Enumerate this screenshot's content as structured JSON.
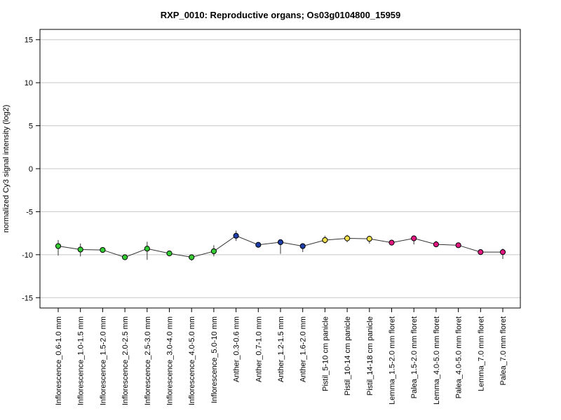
{
  "chart_data": {
    "type": "scatter",
    "title": "RXP_0010: Reproductive organs; Os03g0104800_15959",
    "ylabel": "normalized Cy3 signal intensity (log2)",
    "xlabel": "",
    "ylim": [
      -16.2,
      16.2
    ],
    "yticks": [
      -15,
      -10,
      -5,
      0,
      5,
      10,
      15
    ],
    "grid": "horizontal",
    "connected": true,
    "categories": [
      "Inflorescence_0.6-1.0 mm",
      "Inflorescence_1.0-1.5 mm",
      "Inflorescence_1.5-2.0 mm",
      "Inflorescence_2.0-2.5 mm",
      "Inflorescence_2.5-3.0 mm",
      "Inflorescence_3.0-4.0 mm",
      "Inflorescence_4.0-5.0 mm",
      "Inflorescence_5.0-10 mm",
      "Anther_0.3-0.6 mm",
      "Anther_0.7-1.0 mm",
      "Anther_1.2-1.5 mm",
      "Anther_1.6-2.0 mm",
      "Pistil_5-10 cm panicle",
      "Pistil_10-14 cm panicle",
      "Pistil_14-18 cm panicle",
      "Lemma_1.5-2.0 mm floret",
      "Palea_1.5-2.0 mm floret",
      "Lemma_4.0-5.0 mm floret",
      "Palea_4.0-5.0 mm floret",
      "Lemma_7.0 mm floret",
      "Palea_7.0 mm floret"
    ],
    "values": [
      -9.0,
      -9.4,
      -9.45,
      -10.3,
      -9.3,
      -9.85,
      -10.3,
      -9.6,
      -7.8,
      -8.85,
      -8.55,
      -9.0,
      -8.3,
      -8.1,
      -8.15,
      -8.6,
      -8.1,
      -8.8,
      -8.9,
      -9.7,
      -9.7
    ],
    "error_low": [
      -10.1,
      -10.2,
      -9.65,
      -10.5,
      -10.6,
      -10.0,
      -10.7,
      -10.2,
      -8.4,
      -9.05,
      -9.9,
      -9.7,
      -8.7,
      -8.55,
      -8.7,
      -8.75,
      -8.8,
      -9.1,
      -9.2,
      -9.85,
      -10.5
    ],
    "error_high": [
      -8.3,
      -8.7,
      -9.3,
      -10.1,
      -8.5,
      -9.7,
      -10.0,
      -8.9,
      -7.2,
      -8.65,
      -8.35,
      -8.8,
      -7.8,
      -7.7,
      -7.8,
      -8.45,
      -7.8,
      -8.4,
      -8.6,
      -9.55,
      -9.3
    ],
    "colors": [
      "#33cc33",
      "#33cc33",
      "#33cc33",
      "#33cc33",
      "#33cc33",
      "#33cc33",
      "#33cc33",
      "#33cc33",
      "#1f3fa8",
      "#1f3fa8",
      "#1f3fa8",
      "#1f3fa8",
      "#f0e04a",
      "#f0e04a",
      "#f0e04a",
      "#e0187f",
      "#e0187f",
      "#e0187f",
      "#e0187f",
      "#e0187f",
      "#e0187f"
    ]
  }
}
